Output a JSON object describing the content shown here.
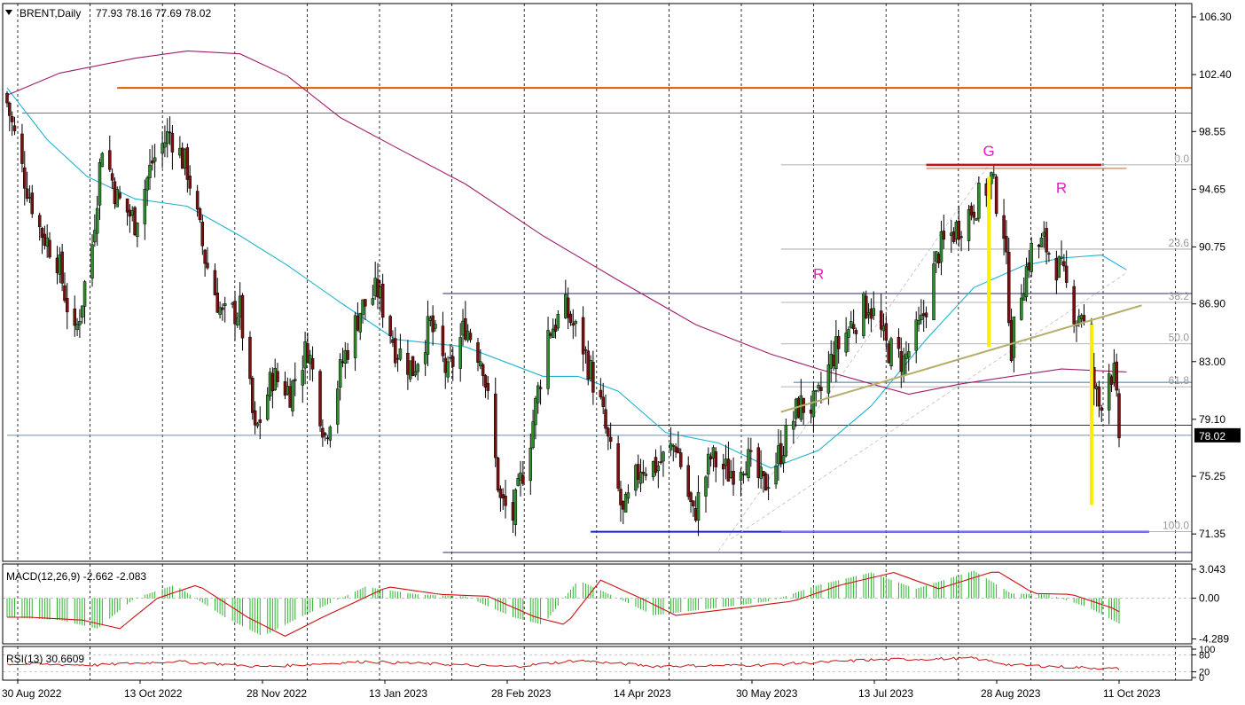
{
  "chart_data": [
    {
      "type": "candlestick",
      "header": {
        "symbol": "BRENT,Daily",
        "values": "77.93 78.16 77.69 78.02"
      },
      "y_ticks": [
        "106.30",
        "102.40",
        "98.55",
        "94.65",
        "90.75",
        "86.90",
        "83.00",
        "79.10",
        "75.25",
        "71.35"
      ],
      "ylim": [
        69.5,
        107.2
      ],
      "last_price": "78.02",
      "x_ticks": [
        "30 Aug 2022",
        "13 Oct 2022",
        "28 Nov 2022",
        "13 Jan 2023",
        "28 Feb 2023",
        "14 Apr 2023",
        "30 May 2023",
        "13 Jul 2023",
        "28 Aug 2023",
        "11 Oct 2023"
      ],
      "candle_anchors": [
        {
          "date": "2022-08-30",
          "close": 100.5
        },
        {
          "date": "2022-09-05",
          "close": 96.0
        },
        {
          "date": "2022-09-12",
          "close": 92.0
        },
        {
          "date": "2022-09-19",
          "close": 90.0
        },
        {
          "date": "2022-09-26",
          "close": 84.5
        },
        {
          "date": "2022-10-03",
          "close": 91.0
        },
        {
          "date": "2022-10-07",
          "close": 97.8
        },
        {
          "date": "2022-10-13",
          "close": 94.0
        },
        {
          "date": "2022-10-20",
          "close": 92.5
        },
        {
          "date": "2022-10-27",
          "close": 96.5
        },
        {
          "date": "2022-11-03",
          "close": 98.5
        },
        {
          "date": "2022-11-10",
          "close": 96.0
        },
        {
          "date": "2022-11-17",
          "close": 90.0
        },
        {
          "date": "2022-11-24",
          "close": 86.0
        },
        {
          "date": "2022-12-01",
          "close": 86.5
        },
        {
          "date": "2022-12-07",
          "close": 78.0
        },
        {
          "date": "2022-12-14",
          "close": 82.0
        },
        {
          "date": "2022-12-21",
          "close": 81.0
        },
        {
          "date": "2022-12-28",
          "close": 84.0
        },
        {
          "date": "2023-01-04",
          "close": 78.0
        },
        {
          "date": "2023-01-11",
          "close": 83.0
        },
        {
          "date": "2023-01-18",
          "close": 86.5
        },
        {
          "date": "2023-01-25",
          "close": 87.8
        },
        {
          "date": "2023-02-01",
          "close": 84.0
        },
        {
          "date": "2023-02-08",
          "close": 82.5
        },
        {
          "date": "2023-02-15",
          "close": 85.5
        },
        {
          "date": "2023-02-22",
          "close": 82.0
        },
        {
          "date": "2023-03-01",
          "close": 85.5
        },
        {
          "date": "2023-03-08",
          "close": 83.0
        },
        {
          "date": "2023-03-15",
          "close": 73.5
        },
        {
          "date": "2023-03-20",
          "close": 72.5
        },
        {
          "date": "2023-03-27",
          "close": 78.0
        },
        {
          "date": "2023-04-03",
          "close": 85.0
        },
        {
          "date": "2023-04-10",
          "close": 86.5
        },
        {
          "date": "2023-04-17",
          "close": 84.0
        },
        {
          "date": "2023-04-24",
          "close": 80.0
        },
        {
          "date": "2023-05-03",
          "close": 72.5
        },
        {
          "date": "2023-05-10",
          "close": 76.0
        },
        {
          "date": "2023-05-17",
          "close": 76.0
        },
        {
          "date": "2023-05-24",
          "close": 77.5
        },
        {
          "date": "2023-05-31",
          "close": 72.5
        },
        {
          "date": "2023-06-07",
          "close": 76.5
        },
        {
          "date": "2023-06-14",
          "close": 75.5
        },
        {
          "date": "2023-06-21",
          "close": 76.5
        },
        {
          "date": "2023-06-28",
          "close": 74.5
        },
        {
          "date": "2023-07-05",
          "close": 77.0
        },
        {
          "date": "2023-07-12",
          "close": 80.0
        },
        {
          "date": "2023-07-19",
          "close": 80.0
        },
        {
          "date": "2023-07-26",
          "close": 83.5
        },
        {
          "date": "2023-08-02",
          "close": 85.5
        },
        {
          "date": "2023-08-09",
          "close": 87.0
        },
        {
          "date": "2023-08-16",
          "close": 84.0
        },
        {
          "date": "2023-08-23",
          "close": 83.0
        },
        {
          "date": "2023-08-30",
          "close": 85.5
        },
        {
          "date": "2023-09-06",
          "close": 90.5
        },
        {
          "date": "2023-09-13",
          "close": 92.0
        },
        {
          "date": "2023-09-20",
          "close": 93.5
        },
        {
          "date": "2023-09-27",
          "close": 95.3
        },
        {
          "date": "2023-10-02",
          "close": 92.0
        },
        {
          "date": "2023-10-05",
          "close": 84.0
        },
        {
          "date": "2023-10-09",
          "close": 88.0
        },
        {
          "date": "2023-10-13",
          "close": 90.5
        },
        {
          "date": "2023-10-18",
          "close": 91.0
        },
        {
          "date": "2023-10-25",
          "close": 89.0
        },
        {
          "date": "2023-10-31",
          "close": 86.0
        },
        {
          "date": "2023-11-02",
          "close": 86.5
        },
        {
          "date": "2023-11-06",
          "close": 82.0
        },
        {
          "date": "2023-11-09",
          "close": 80.0
        },
        {
          "date": "2023-11-13",
          "close": 82.5
        },
        {
          "date": "2023-11-15",
          "close": 82.0
        },
        {
          "date": "2023-11-17",
          "close": 78.02
        }
      ],
      "series": [
        {
          "type": "line",
          "color": "#1fb3d2",
          "points": [
            {
              "date": "2022-08-30",
              "value": 101.5
            },
            {
              "date": "2022-09-15",
              "value": 98.0
            },
            {
              "date": "2022-10-01",
              "value": 95.5
            },
            {
              "date": "2022-10-20",
              "value": 94.0
            },
            {
              "date": "2022-11-10",
              "value": 93.5
            },
            {
              "date": "2022-12-01",
              "value": 91.5
            },
            {
              "date": "2022-12-20",
              "value": 89.5
            },
            {
              "date": "2023-01-10",
              "value": 87.0
            },
            {
              "date": "2023-02-01",
              "value": 84.5
            },
            {
              "date": "2023-03-01",
              "value": 84.0
            },
            {
              "date": "2023-04-01",
              "value": 82.0
            },
            {
              "date": "2023-04-15",
              "value": 82.0
            },
            {
              "date": "2023-05-01",
              "value": 81.0
            },
            {
              "date": "2023-05-20",
              "value": 78.2
            },
            {
              "date": "2023-06-10",
              "value": 77.5
            },
            {
              "date": "2023-07-01",
              "value": 75.8
            },
            {
              "date": "2023-07-20",
              "value": 77.0
            },
            {
              "date": "2023-08-10",
              "value": 80.0
            },
            {
              "date": "2023-09-01",
              "value": 84.5
            },
            {
              "date": "2023-09-20",
              "value": 88.0
            },
            {
              "date": "2023-10-10",
              "value": 89.5
            },
            {
              "date": "2023-10-25",
              "value": 90.0
            },
            {
              "date": "2023-11-10",
              "value": 90.2
            },
            {
              "date": "2023-11-20",
              "value": 89.2
            }
          ]
        },
        {
          "type": "line",
          "color": "#a01d6c",
          "points": [
            {
              "date": "2022-08-30",
              "value": 101.0
            },
            {
              "date": "2022-09-20",
              "value": 102.5
            },
            {
              "date": "2022-10-20",
              "value": 103.5
            },
            {
              "date": "2022-11-10",
              "value": 104.0
            },
            {
              "date": "2022-12-01",
              "value": 103.8
            },
            {
              "date": "2022-12-20",
              "value": 102.3
            },
            {
              "date": "2023-01-10",
              "value": 99.5
            },
            {
              "date": "2023-02-01",
              "value": 97.5
            },
            {
              "date": "2023-03-01",
              "value": 95.0
            },
            {
              "date": "2023-04-01",
              "value": 91.5
            },
            {
              "date": "2023-05-01",
              "value": 88.5
            },
            {
              "date": "2023-06-01",
              "value": 85.5
            },
            {
              "date": "2023-07-01",
              "value": 83.5
            },
            {
              "date": "2023-07-20",
              "value": 82.5
            },
            {
              "date": "2023-08-10",
              "value": 81.5
            },
            {
              "date": "2023-08-25",
              "value": 80.8
            },
            {
              "date": "2023-09-15",
              "value": 81.5
            },
            {
              "date": "2023-10-05",
              "value": 82.0
            },
            {
              "date": "2023-10-25",
              "value": 82.5
            },
            {
              "date": "2023-11-20",
              "value": 82.3
            }
          ]
        }
      ],
      "horizontal_levels": [
        {
          "price": 101.5,
          "color": "#e05a00",
          "x_from": "2022-10-13"
        },
        {
          "price": 99.8,
          "color": "#c040c0",
          "x_from": "2022-09-05"
        },
        {
          "price": 87.6,
          "color": "#2a2a6a",
          "x_from": "2023-02-20"
        },
        {
          "price": 78.7,
          "color": "#2a2a7a",
          "x_from": "2023-04-25"
        },
        {
          "price": 78.02,
          "color": "#6a8fb5",
          "x_from": "2022-08-30"
        },
        {
          "price": 81.6,
          "color": "#3a7aa0",
          "x_from": "2023-07-10"
        },
        {
          "price": 71.5,
          "color": "#1b1be0",
          "x_from": "2023-04-20",
          "x_to": "2023-11-29"
        },
        {
          "price": 70.1,
          "color": "#2a2a6a",
          "x_from": "2023-02-20"
        }
      ],
      "fibonacci": {
        "levels": [
          "0.0",
          "23.6",
          "38.2",
          "50.0",
          "61.8",
          "100.0"
        ],
        "prices": [
          96.3,
          90.6,
          87.0,
          84.2,
          81.3,
          71.5
        ],
        "x_from": "2023-07-05"
      },
      "annotations": [
        {
          "text": "R",
          "color": "#e818c8",
          "date": "2023-07-20",
          "price": 88.6
        },
        {
          "text": "G",
          "color": "#e818c8",
          "date": "2023-09-26",
          "price": 96.9
        },
        {
          "text": "R",
          "color": "#e818c8",
          "date": "2023-10-25",
          "price": 94.4
        }
      ],
      "resistance_line": {
        "color": "#cc1111",
        "from": {
          "date": "2023-09-01",
          "price": 96.3
        },
        "to": {
          "date": "2023-11-10",
          "price": 96.3
        }
      },
      "trend_line": {
        "color": "#b5ad6a",
        "from": {
          "date": "2023-07-05",
          "price": 79.6
        },
        "to": {
          "date": "2023-11-26",
          "price": 86.8
        }
      },
      "yellow_bars": [
        {
          "date": "2023-09-26",
          "from": 95.5,
          "to": 84.0
        },
        {
          "date": "2023-11-06",
          "from": 85.5,
          "to": 73.3
        }
      ],
      "grid": true
    },
    {
      "type": "macd",
      "header": "MACD(12,26,9) -2.662 -2.083",
      "y_ticks": [
        "3.043",
        "0.00",
        "-4.289"
      ],
      "ylim": [
        -4.8,
        3.6
      ],
      "histogram_color": "#2db52d",
      "signal_color": "#cc1111",
      "points": [
        {
          "date": "2022-08-30",
          "value": -2.0
        },
        {
          "date": "2022-09-20",
          "value": -2.3
        },
        {
          "date": "2022-10-05",
          "value": -3.2
        },
        {
          "date": "2022-10-20",
          "value": 0.0
        },
        {
          "date": "2022-11-05",
          "value": 1.4
        },
        {
          "date": "2022-11-25",
          "value": -2.0
        },
        {
          "date": "2022-12-10",
          "value": -4.0
        },
        {
          "date": "2022-12-25",
          "value": -2.0
        },
        {
          "date": "2023-01-20",
          "value": 1.2
        },
        {
          "date": "2023-02-10",
          "value": 0.4
        },
        {
          "date": "2023-03-01",
          "value": 0.2
        },
        {
          "date": "2023-03-20",
          "value": -2.0
        },
        {
          "date": "2023-04-01",
          "value": -2.8
        },
        {
          "date": "2023-04-15",
          "value": 1.9
        },
        {
          "date": "2023-05-01",
          "value": 0.0
        },
        {
          "date": "2023-05-15",
          "value": -1.8
        },
        {
          "date": "2023-06-10",
          "value": -1.0
        },
        {
          "date": "2023-07-01",
          "value": -0.3
        },
        {
          "date": "2023-07-20",
          "value": 1.4
        },
        {
          "date": "2023-08-10",
          "value": 2.7
        },
        {
          "date": "2023-08-28",
          "value": 1.0
        },
        {
          "date": "2023-09-20",
          "value": 2.9
        },
        {
          "date": "2023-10-05",
          "value": 0.5
        },
        {
          "date": "2023-10-20",
          "value": 0.4
        },
        {
          "date": "2023-11-05",
          "value": -1.0
        },
        {
          "date": "2023-11-17",
          "value": -2.662
        }
      ]
    },
    {
      "type": "rsi",
      "header": "RSI(13) 30.6609",
      "y_ticks": [
        "100",
        "80",
        "20",
        "0"
      ],
      "ylim": [
        0,
        100
      ],
      "color": "#cc1111",
      "points": [
        {
          "date": "2022-08-30",
          "value": 48
        },
        {
          "date": "2022-10-05",
          "value": 44
        },
        {
          "date": "2022-11-05",
          "value": 57
        },
        {
          "date": "2022-12-10",
          "value": 38
        },
        {
          "date": "2023-01-20",
          "value": 56
        },
        {
          "date": "2023-03-20",
          "value": 38
        },
        {
          "date": "2023-04-15",
          "value": 60
        },
        {
          "date": "2023-05-15",
          "value": 40
        },
        {
          "date": "2023-06-28",
          "value": 44
        },
        {
          "date": "2023-08-10",
          "value": 62
        },
        {
          "date": "2023-09-20",
          "value": 68
        },
        {
          "date": "2023-10-05",
          "value": 44
        },
        {
          "date": "2023-11-17",
          "value": 30.6609
        }
      ]
    }
  ]
}
